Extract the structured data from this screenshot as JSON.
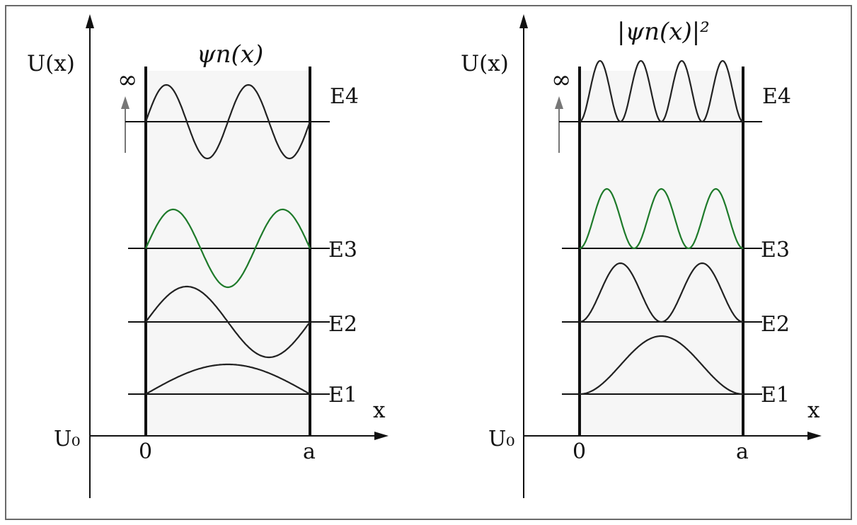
{
  "colors": {
    "default_curve": "#222222",
    "highlight_curve": "#1e7a2a",
    "frame": "#6a6a6a",
    "well_background": "#f6f6f6"
  },
  "panels": [
    {
      "id": "wavefunction",
      "y_axis_label": "U(x)",
      "title": "ψn(x)",
      "infinity_label": "∞",
      "x_axis_label": "x",
      "baseline_label": "U₀",
      "left_wall_label": "0",
      "right_wall_label": "a",
      "plot": "psi",
      "levels": [
        {
          "label": "E4",
          "n": 4
        },
        {
          "label": "E3",
          "n": 3,
          "highlight": true
        },
        {
          "label": "E2",
          "n": 2
        },
        {
          "label": "E1",
          "n": 1
        }
      ]
    },
    {
      "id": "probability-density",
      "y_axis_label": "U(x)",
      "title": "|ψn(x)|²",
      "infinity_label": "∞",
      "x_axis_label": "x",
      "baseline_label": "U₀",
      "left_wall_label": "0",
      "right_wall_label": "a",
      "plot": "psi_squared",
      "levels": [
        {
          "label": "E4",
          "n": 4
        },
        {
          "label": "E3",
          "n": 3,
          "highlight": true
        },
        {
          "label": "E2",
          "n": 2
        },
        {
          "label": "E1",
          "n": 1
        }
      ]
    }
  ]
}
